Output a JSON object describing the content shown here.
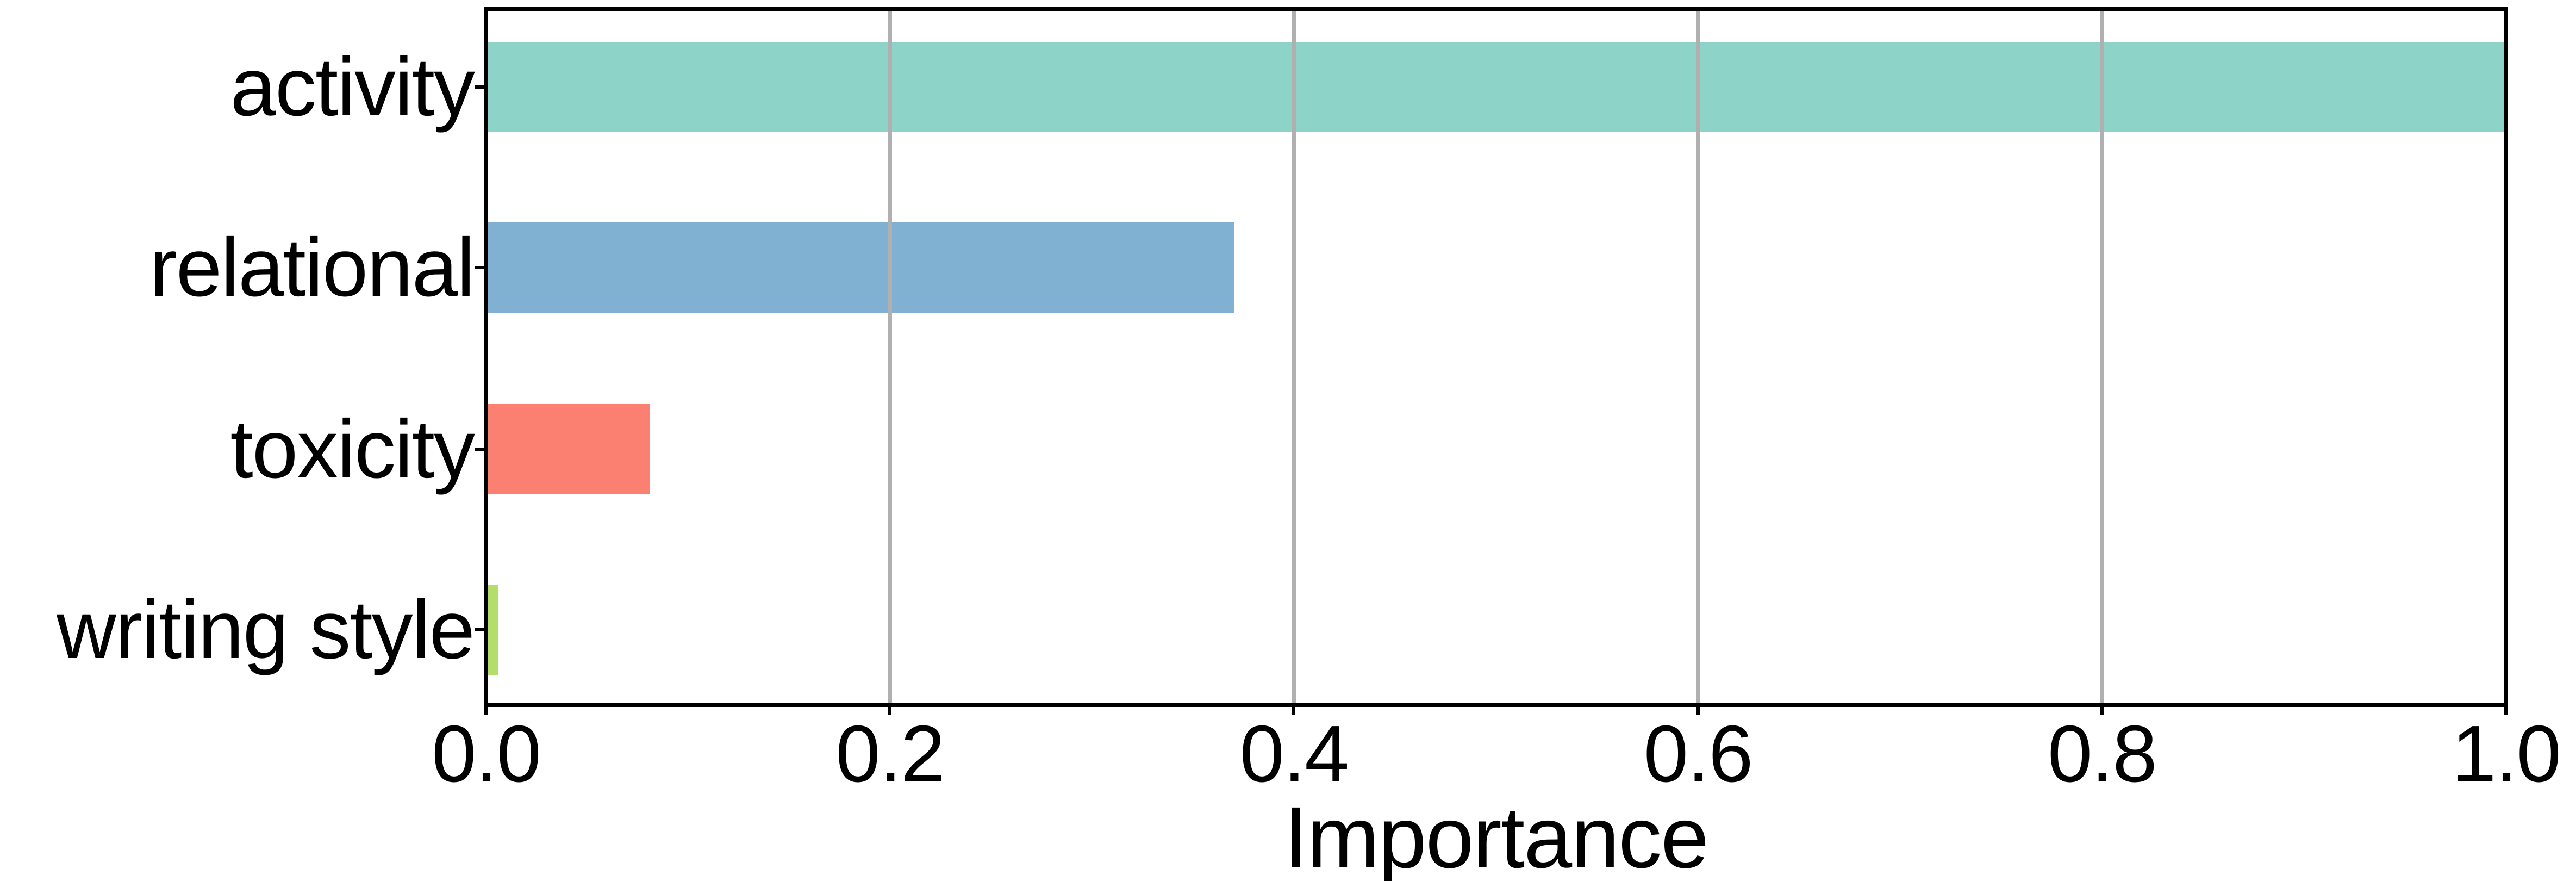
{
  "chart_data": {
    "type": "bar",
    "orientation": "horizontal",
    "title": "",
    "xlabel": "Importance",
    "ylabel": "",
    "categories": [
      "activity",
      "relational",
      "toxicity",
      "writing style"
    ],
    "values": [
      1.0,
      0.37,
      0.08,
      0.005
    ],
    "bar_colors": [
      "#8dd3c7",
      "#80b1d3",
      "#fb8072",
      "#b3de69"
    ],
    "xlim": [
      0.0,
      1.0
    ],
    "x_ticks": [
      0.0,
      0.2,
      0.4,
      0.6,
      0.8,
      1.0
    ],
    "x_tick_labels": [
      "0.0",
      "0.2",
      "0.4",
      "0.6",
      "0.8",
      "1.0"
    ],
    "grid": "vertical gridlines at x ticks, drawn above bars",
    "grid_color": "#b0b0b0",
    "spine_color": "#000000",
    "tick_color": "#000000",
    "text_color": "#000000",
    "background_color": "#ffffff",
    "legend": "none"
  }
}
